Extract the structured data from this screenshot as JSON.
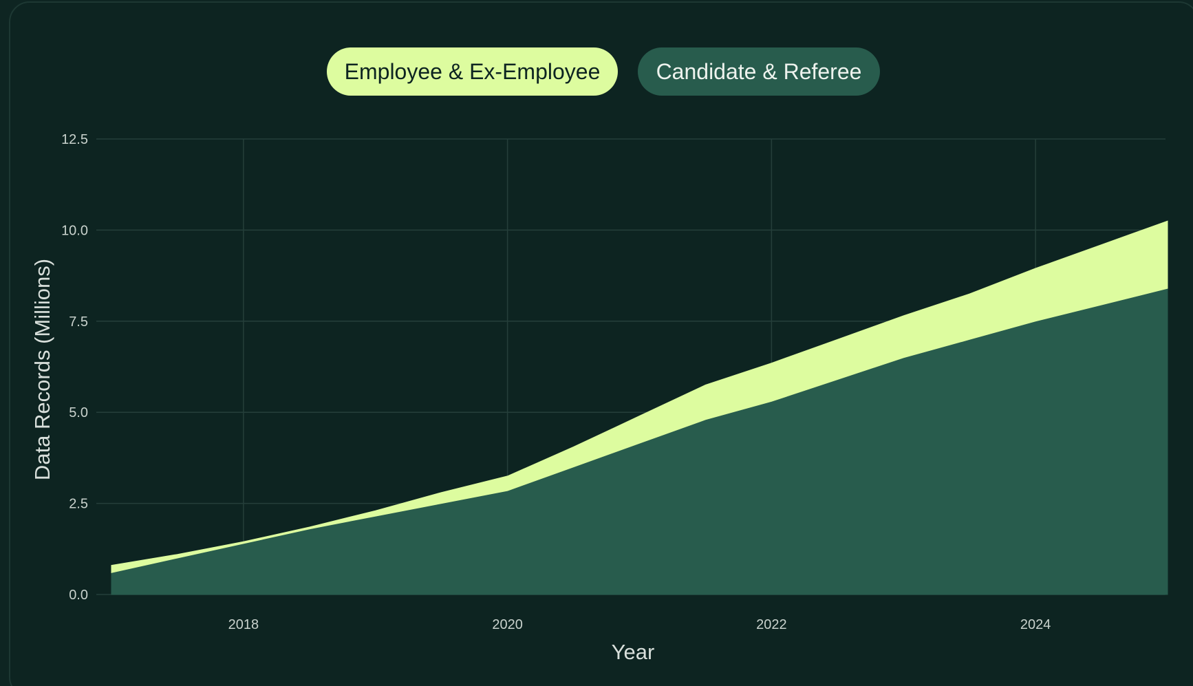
{
  "legend": {
    "employee_label": "Employee & Ex-Employee",
    "candidate_label": "Candidate & Referee"
  },
  "colors": {
    "background": "#0d2421",
    "employee": "#ddfc9f",
    "candidate": "#285c4d",
    "grid": "#253f3a"
  },
  "chart_data": {
    "type": "area",
    "stacked": true,
    "xlabel": "Year",
    "ylabel": "Data Records (Millions)",
    "xlim": [
      2017.0,
      2025.0
    ],
    "ylim": [
      0,
      12.5
    ],
    "x_ticks": [
      2018,
      2020,
      2022,
      2024
    ],
    "y_ticks": [
      0.0,
      2.5,
      5.0,
      7.5,
      10.0,
      12.5
    ],
    "y_tick_labels": [
      "0.0",
      "2.5",
      "5.0",
      "7.5",
      "10.0",
      "12.5"
    ],
    "grid": true,
    "legend_position": "top-center",
    "x": [
      2017.0,
      2017.5,
      2018.0,
      2018.5,
      2019.0,
      2019.5,
      2020.0,
      2020.5,
      2021.0,
      2021.5,
      2022.0,
      2022.5,
      2023.0,
      2023.5,
      2024.0,
      2024.5,
      2025.0
    ],
    "series": [
      {
        "name": "Candidate & Referee",
        "color": "#285c4d",
        "values": [
          0.6,
          1.0,
          1.4,
          1.8,
          2.15,
          2.5,
          2.85,
          3.5,
          4.15,
          4.8,
          5.3,
          5.9,
          6.5,
          7.0,
          7.5,
          7.95,
          8.4
        ]
      },
      {
        "name": "Employee & Ex-Employee",
        "color": "#ddfc9f",
        "values": [
          0.2,
          0.1,
          0.05,
          0.05,
          0.15,
          0.3,
          0.4,
          0.55,
          0.75,
          0.95,
          1.05,
          1.1,
          1.15,
          1.25,
          1.45,
          1.65,
          1.85
        ]
      }
    ]
  }
}
